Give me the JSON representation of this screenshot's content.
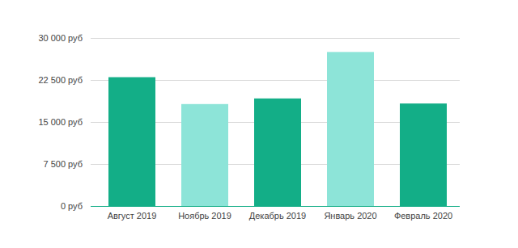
{
  "chart_data": {
    "type": "bar",
    "categories": [
      "Август 2019",
      "Ноябрь 2019",
      "Декабрь 2019",
      "Январь 2020",
      "Февраль 2020"
    ],
    "values": [
      23000,
      18200,
      19200,
      27500,
      18300
    ],
    "colors": [
      "#13ae87",
      "#8de4d8",
      "#13ae87",
      "#8de4d8",
      "#13ae87"
    ],
    "ylim": [
      0,
      30000
    ],
    "yticks": [
      {
        "value": 0,
        "label": "0 руб"
      },
      {
        "value": 7500,
        "label": "7 500 руб"
      },
      {
        "value": 15000,
        "label": "15 000 руб"
      },
      {
        "value": 22500,
        "label": "22 500 руб"
      },
      {
        "value": 30000,
        "label": "30 000 руб"
      }
    ],
    "grid": true
  }
}
